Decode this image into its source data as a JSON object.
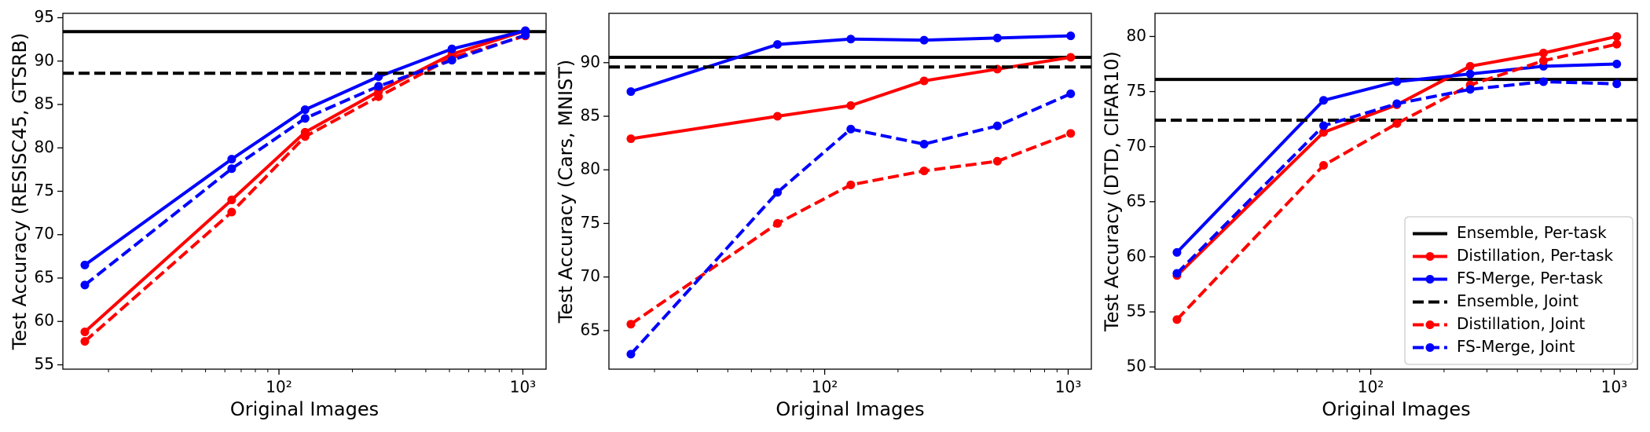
{
  "chart_data": [
    {
      "type": "line",
      "x_label": "Original Images",
      "y_label": "Test Accuracy (RESISC45, GTSRB)",
      "x": [
        16,
        64,
        128,
        256,
        512,
        1024
      ],
      "xlog": true,
      "xlim": [
        13,
        1245
      ],
      "xticks": [
        {
          "value": 100,
          "label": "10²"
        },
        {
          "value": 1000,
          "label": "10³"
        }
      ],
      "xminor_ticks": [
        20,
        30,
        40,
        50,
        60,
        70,
        80,
        90,
        200,
        300,
        400,
        500,
        600,
        700,
        800,
        900
      ],
      "ylim": [
        54.5,
        95.5
      ],
      "yticks": [
        55,
        60,
        65,
        70,
        75,
        80,
        85,
        90,
        95
      ],
      "series": [
        {
          "color": "#000000",
          "style": "solid",
          "value": 93.4
        },
        {
          "color": "#ff0000",
          "style": "solid",
          "marker": true,
          "values": [
            58.8,
            74.0,
            81.8,
            86.5,
            90.8,
            93.5
          ]
        },
        {
          "color": "#0000ff",
          "style": "solid",
          "marker": true,
          "values": [
            66.5,
            78.7,
            84.4,
            88.2,
            91.4,
            93.5
          ]
        },
        {
          "color": "#000000",
          "style": "dashed",
          "value": 88.6
        },
        {
          "color": "#ff0000",
          "style": "dashed",
          "marker": true,
          "values": [
            57.7,
            72.6,
            81.3,
            85.9,
            90.4,
            92.9
          ]
        },
        {
          "color": "#0000ff",
          "style": "dashed",
          "marker": true,
          "values": [
            64.2,
            77.6,
            83.4,
            87.1,
            90.1,
            93.0
          ]
        }
      ]
    },
    {
      "type": "line",
      "x_label": "Original Images",
      "y_label": "Test Accuracy (Cars, MNIST)",
      "x": [
        16,
        64,
        128,
        256,
        512,
        1024
      ],
      "xlog": true,
      "xlim": [
        13,
        1245
      ],
      "xticks": [
        {
          "value": 100,
          "label": "10²"
        },
        {
          "value": 1000,
          "label": "10³"
        }
      ],
      "xminor_ticks": [
        20,
        30,
        40,
        50,
        60,
        70,
        80,
        90,
        200,
        300,
        400,
        500,
        600,
        700,
        800,
        900
      ],
      "ylim": [
        61.4,
        94.6
      ],
      "yticks": [
        65,
        70,
        75,
        80,
        85,
        90
      ],
      "series": [
        {
          "color": "#000000",
          "style": "solid",
          "value": 90.5
        },
        {
          "color": "#ff0000",
          "style": "solid",
          "marker": true,
          "values": [
            82.9,
            85.0,
            86.0,
            88.3,
            89.4,
            90.5
          ]
        },
        {
          "color": "#0000ff",
          "style": "solid",
          "marker": true,
          "values": [
            87.3,
            91.7,
            92.2,
            92.1,
            92.3,
            92.5
          ]
        },
        {
          "color": "#000000",
          "style": "dashed",
          "value": 89.6
        },
        {
          "color": "#ff0000",
          "style": "dashed",
          "marker": true,
          "values": [
            65.6,
            75.0,
            78.6,
            79.9,
            80.8,
            83.4
          ]
        },
        {
          "color": "#0000ff",
          "style": "dashed",
          "marker": true,
          "values": [
            62.8,
            77.9,
            83.8,
            82.4,
            84.1,
            87.1
          ]
        }
      ]
    },
    {
      "type": "line",
      "x_label": "Original Images",
      "y_label": "Test Accuracy (DTD, CIFAR10)",
      "x": [
        16,
        64,
        128,
        256,
        512,
        1024
      ],
      "xlog": true,
      "xlim": [
        13,
        1245
      ],
      "xticks": [
        {
          "value": 100,
          "label": "10²"
        },
        {
          "value": 1000,
          "label": "10³"
        }
      ],
      "xminor_ticks": [
        20,
        30,
        40,
        50,
        60,
        70,
        80,
        90,
        200,
        300,
        400,
        500,
        600,
        700,
        800,
        900
      ],
      "ylim": [
        49.8,
        82.1
      ],
      "yticks": [
        50,
        55,
        60,
        65,
        70,
        75,
        80
      ],
      "legend": "lower right",
      "series": [
        {
          "name": "Ensemble, Per-task",
          "color": "#000000",
          "style": "solid",
          "value": 76.1
        },
        {
          "name": "Distillation, Per-task",
          "color": "#ff0000",
          "style": "solid",
          "marker": true,
          "values": [
            58.3,
            71.3,
            73.8,
            77.3,
            78.5,
            80.0
          ]
        },
        {
          "name": "FS-Merge, Per-task",
          "color": "#0000ff",
          "style": "solid",
          "marker": true,
          "values": [
            60.4,
            74.2,
            75.9,
            76.6,
            77.3,
            77.5
          ]
        },
        {
          "name": "Ensemble, Joint",
          "color": "#000000",
          "style": "dashed",
          "value": 72.4
        },
        {
          "name": "Distillation, Joint",
          "color": "#ff0000",
          "style": "dashed",
          "marker": true,
          "values": [
            54.3,
            68.3,
            72.1,
            75.6,
            77.8,
            79.3
          ]
        },
        {
          "name": "FS-Merge, Joint",
          "color": "#0000ff",
          "style": "dashed",
          "marker": true,
          "values": [
            58.5,
            71.9,
            73.9,
            75.2,
            75.9,
            75.7
          ]
        }
      ]
    }
  ]
}
